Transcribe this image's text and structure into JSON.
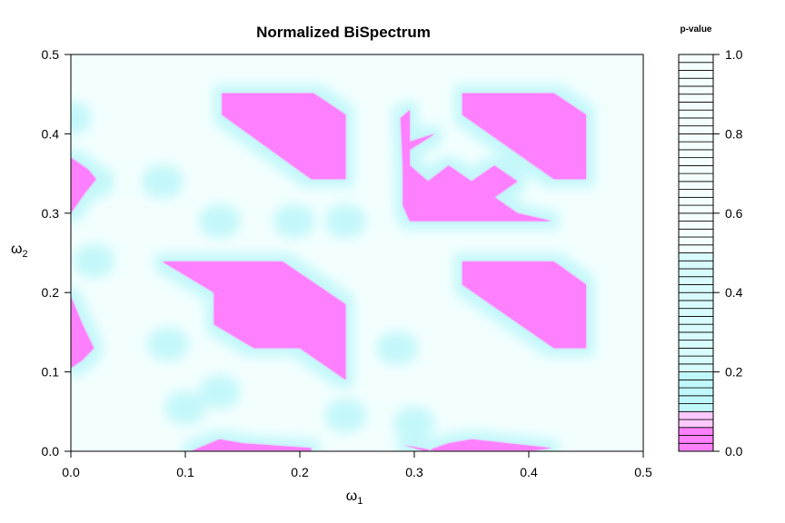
{
  "chart_data": {
    "type": "heatmap",
    "title": "Normalized BiSpectrum",
    "xlabel": {
      "base": "ω",
      "sub": "1"
    },
    "ylabel": {
      "base": "ω",
      "sub": "2"
    },
    "xlim": [
      0,
      0.5
    ],
    "ylim": [
      0,
      0.5
    ],
    "x_ticks": [
      "0.0",
      "0.1",
      "0.2",
      "0.3",
      "0.4",
      "0.5"
    ],
    "y_ticks": [
      "0.0",
      "0.1",
      "0.2",
      "0.3",
      "0.4",
      "0.5"
    ],
    "background_color": "#f2fefe",
    "halo_color": "#bff7f9",
    "significant_color": "#ff80ff",
    "significant_regions": [
      {
        "name": "upper-left block",
        "polygon": [
          [
            0.132,
            0.451
          ],
          [
            0.212,
            0.451
          ],
          [
            0.24,
            0.424
          ],
          [
            0.24,
            0.343
          ],
          [
            0.21,
            0.343
          ],
          [
            0.132,
            0.424
          ]
        ]
      },
      {
        "name": "upper-right block",
        "polygon": [
          [
            0.342,
            0.451
          ],
          [
            0.422,
            0.451
          ],
          [
            0.45,
            0.424
          ],
          [
            0.45,
            0.343
          ],
          [
            0.422,
            0.343
          ],
          [
            0.342,
            0.424
          ]
        ]
      },
      {
        "name": "middle-left block",
        "polygon": [
          [
            0.08,
            0.239
          ],
          [
            0.185,
            0.239
          ],
          [
            0.24,
            0.185
          ],
          [
            0.24,
            0.09
          ],
          [
            0.2,
            0.13
          ],
          [
            0.16,
            0.13
          ],
          [
            0.125,
            0.16
          ],
          [
            0.125,
            0.2
          ]
        ]
      },
      {
        "name": "middle-right block",
        "polygon": [
          [
            0.342,
            0.239
          ],
          [
            0.422,
            0.239
          ],
          [
            0.45,
            0.21
          ],
          [
            0.45,
            0.13
          ],
          [
            0.422,
            0.13
          ],
          [
            0.342,
            0.21
          ]
        ]
      },
      {
        "name": "upper-middle cluster",
        "polygon": [
          [
            0.288,
            0.42
          ],
          [
            0.296,
            0.43
          ],
          [
            0.296,
            0.39
          ],
          [
            0.318,
            0.4
          ],
          [
            0.296,
            0.38
          ],
          [
            0.296,
            0.36
          ],
          [
            0.312,
            0.34
          ],
          [
            0.33,
            0.36
          ],
          [
            0.35,
            0.34
          ],
          [
            0.37,
            0.36
          ],
          [
            0.39,
            0.34
          ],
          [
            0.37,
            0.32
          ],
          [
            0.39,
            0.3
          ],
          [
            0.42,
            0.29
          ],
          [
            0.37,
            0.29
          ],
          [
            0.35,
            0.29
          ],
          [
            0.33,
            0.29
          ],
          [
            0.312,
            0.29
          ],
          [
            0.296,
            0.29
          ],
          [
            0.29,
            0.31
          ],
          [
            0.29,
            0.36
          ]
        ]
      },
      {
        "name": "left edge upper",
        "polygon": [
          [
            0.0,
            0.37
          ],
          [
            0.015,
            0.355
          ],
          [
            0.022,
            0.343
          ],
          [
            0.012,
            0.325
          ],
          [
            0.0,
            0.3
          ]
        ]
      },
      {
        "name": "left edge lower",
        "polygon": [
          [
            0.0,
            0.195
          ],
          [
            0.01,
            0.16
          ],
          [
            0.02,
            0.13
          ],
          [
            0.01,
            0.115
          ],
          [
            0.0,
            0.105
          ]
        ]
      },
      {
        "name": "bottom strip left",
        "polygon": [
          [
            0.105,
            0.0
          ],
          [
            0.13,
            0.015
          ],
          [
            0.15,
            0.01
          ],
          [
            0.21,
            0.004
          ],
          [
            0.21,
            0.0
          ]
        ]
      },
      {
        "name": "bottom strip right",
        "polygon": [
          [
            0.29,
            0.008
          ],
          [
            0.32,
            0.0
          ],
          [
            0.4,
            0.0
          ],
          [
            0.42,
            0.004
          ],
          [
            0.35,
            0.015
          ],
          [
            0.33,
            0.01
          ],
          [
            0.31,
            0.0
          ]
        ]
      }
    ],
    "halo_spots": [
      [
        0.0,
        0.42
      ],
      [
        0.02,
        0.34
      ],
      [
        0.02,
        0.24
      ],
      [
        0.08,
        0.34
      ],
      [
        0.085,
        0.135
      ],
      [
        0.1,
        0.055
      ],
      [
        0.13,
        0.29
      ],
      [
        0.13,
        0.075
      ],
      [
        0.24,
        0.29
      ],
      [
        0.285,
        0.13
      ],
      [
        0.195,
        0.29
      ],
      [
        0.24,
        0.045
      ],
      [
        0.3,
        0.035
      ]
    ],
    "legend": {
      "title": "p-value",
      "ticks": [
        "0.0",
        "0.2",
        "0.4",
        "0.6",
        "0.8",
        "1.0"
      ],
      "bands": [
        {
          "from": 0.0,
          "to": 0.1,
          "steps": 5
        },
        {
          "from": 0.1,
          "to": 0.2,
          "steps": 5
        },
        {
          "from": 0.2,
          "to": 1.0,
          "steps": 40
        }
      ]
    }
  }
}
